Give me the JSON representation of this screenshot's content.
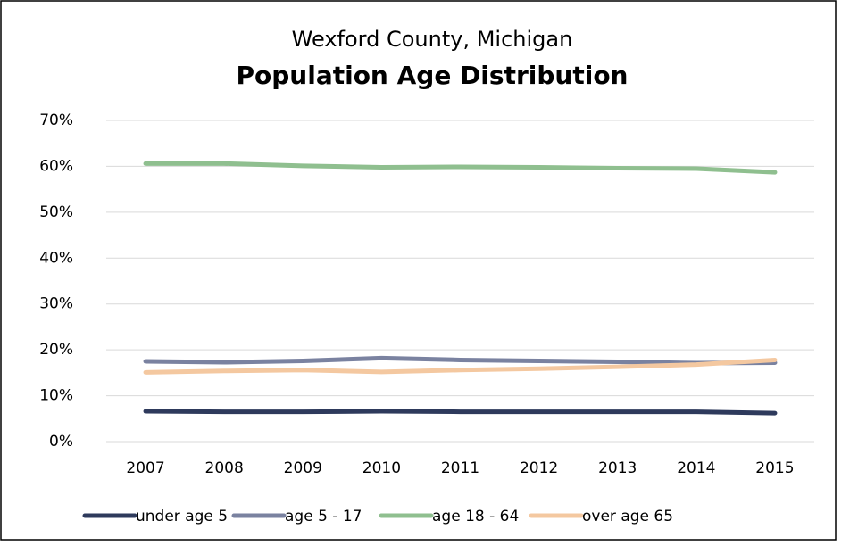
{
  "chart_data": {
    "type": "line",
    "title": "Wexford County, Michigan",
    "subtitle": "Population Age Distribution",
    "categories": [
      "2007",
      "2008",
      "2009",
      "2010",
      "2011",
      "2012",
      "2013",
      "2014",
      "2015"
    ],
    "series": [
      {
        "name": "under age 5",
        "color": "#2e3a5c",
        "values": [
          6.6,
          6.5,
          6.5,
          6.6,
          6.5,
          6.5,
          6.5,
          6.5,
          6.2
        ]
      },
      {
        "name": "age 5 - 17",
        "color": "#7a82a0",
        "values": [
          17.5,
          17.3,
          17.6,
          18.2,
          17.8,
          17.6,
          17.4,
          17.1,
          17.2
        ]
      },
      {
        "name": "age 18 - 64",
        "color": "#8fbf8f",
        "values": [
          60.6,
          60.6,
          60.1,
          59.8,
          59.9,
          59.8,
          59.6,
          59.5,
          58.7
        ]
      },
      {
        "name": "over age 65",
        "color": "#f4c8a0",
        "values": [
          15.1,
          15.4,
          15.6,
          15.2,
          15.6,
          15.9,
          16.3,
          16.8,
          17.8
        ]
      }
    ],
    "ylim": [
      0,
      70
    ],
    "yticks": [
      {
        "value": 0,
        "label": "0%"
      },
      {
        "value": 10,
        "label": "10%"
      },
      {
        "value": 20,
        "label": "20%"
      },
      {
        "value": 30,
        "label": "30%"
      },
      {
        "value": 40,
        "label": "40%"
      },
      {
        "value": 50,
        "label": "50%"
      },
      {
        "value": 60,
        "label": "60%"
      },
      {
        "value": 70,
        "label": "70%"
      }
    ],
    "grid": true,
    "legend": "bottom"
  }
}
